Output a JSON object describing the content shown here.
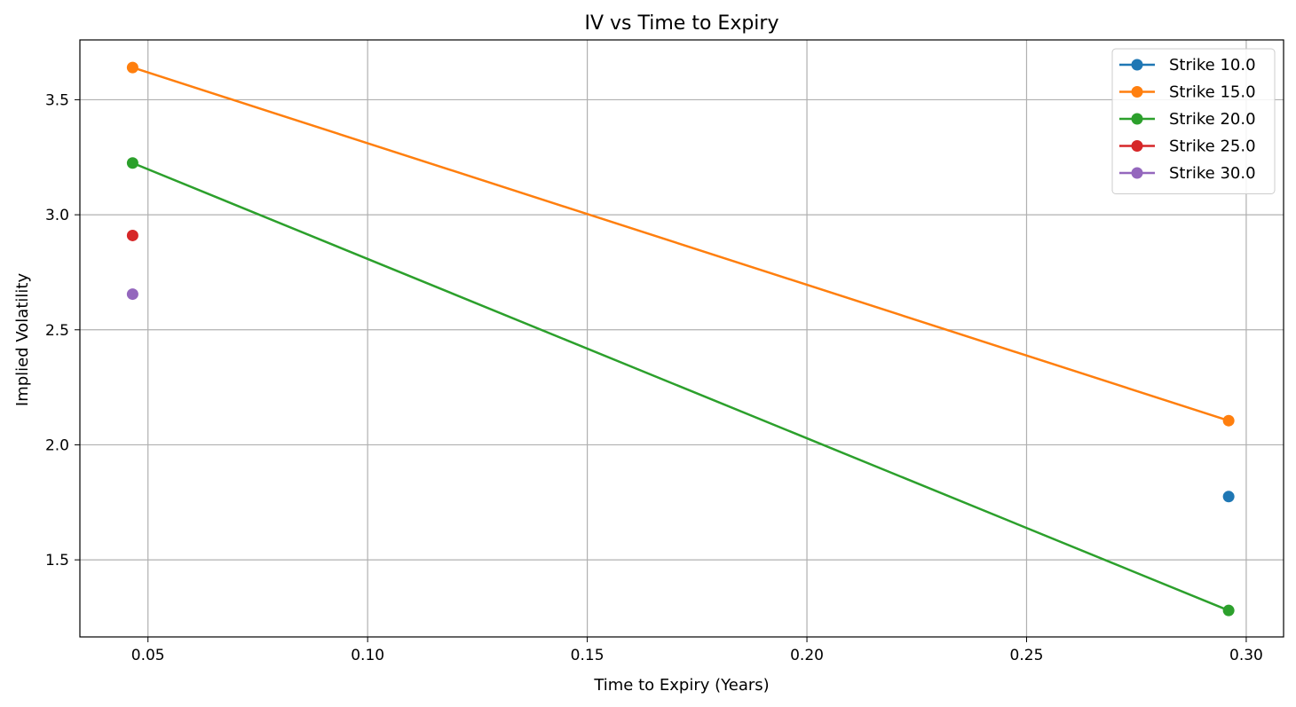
{
  "chart_data": {
    "type": "line",
    "title": "IV vs Time to Expiry",
    "xlabel": "Time to Expiry (Years)",
    "ylabel": "Implied Volatility",
    "xlim": [
      0.0345,
      0.3085
    ],
    "ylim": [
      1.165,
      3.76
    ],
    "xticks": [
      0.05,
      0.1,
      0.15,
      0.2,
      0.25,
      0.3
    ],
    "xtick_labels": [
      "0.05",
      "0.10",
      "0.15",
      "0.20",
      "0.25",
      "0.30"
    ],
    "yticks": [
      1.5,
      2.0,
      2.5,
      3.0,
      3.5
    ],
    "ytick_labels": [
      "1.5",
      "2.0",
      "2.5",
      "3.0",
      "3.5"
    ],
    "grid": true,
    "legend_position": "top-right",
    "series": [
      {
        "name": "Strike 10.0",
        "color": "#1f77b4",
        "x": [
          0.296
        ],
        "y": [
          1.775
        ]
      },
      {
        "name": "Strike 15.0",
        "color": "#ff7f0e",
        "x": [
          0.0465,
          0.296
        ],
        "y": [
          3.64,
          2.105
        ]
      },
      {
        "name": "Strike 20.0",
        "color": "#2ca02c",
        "x": [
          0.0465,
          0.296
        ],
        "y": [
          3.225,
          1.28
        ]
      },
      {
        "name": "Strike 25.0",
        "color": "#d62728",
        "x": [
          0.0465
        ],
        "y": [
          2.91
        ]
      },
      {
        "name": "Strike 30.0",
        "color": "#9467bd",
        "x": [
          0.0465
        ],
        "y": [
          2.655
        ]
      }
    ]
  }
}
